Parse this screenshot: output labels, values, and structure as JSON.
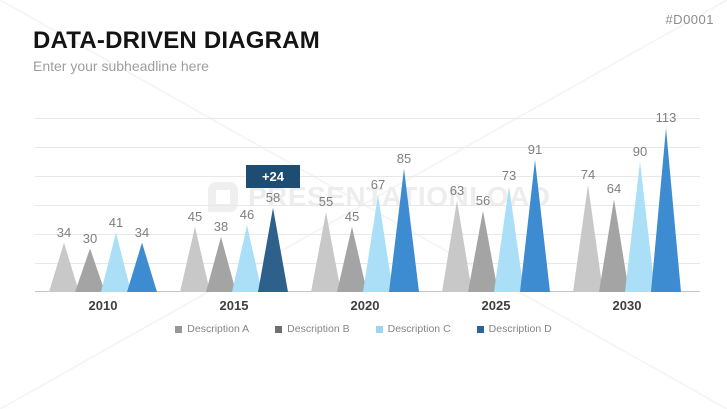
{
  "slide": {
    "code": "#D0001",
    "title": "DATA-DRIVEN DIAGRAM",
    "subheadline": "Enter your subheadline here",
    "watermark_text": "PRESENTATIONLOAD"
  },
  "chart_data": {
    "type": "bar",
    "variant": "triangle-peak-columns",
    "title": "",
    "xlabel": "",
    "ylabel": "",
    "categories": [
      "2010",
      "2015",
      "2020",
      "2025",
      "2030"
    ],
    "series": [
      {
        "name": "Description A",
        "color": "#c8c8c8",
        "legend_color": "#979797",
        "values": [
          34,
          45,
          55,
          63,
          74
        ]
      },
      {
        "name": "Description B",
        "color": "#a4a4a4",
        "legend_color": "#6f6f6f",
        "values": [
          30,
          38,
          45,
          56,
          64
        ]
      },
      {
        "name": "Description C",
        "color": "#abdff8",
        "legend_color": "#a0d4ef",
        "values": [
          41,
          46,
          67,
          73,
          90
        ]
      },
      {
        "name": "Description D",
        "color": "#3d8bd0",
        "legend_color": "#2a6498",
        "values": [
          34,
          58,
          85,
          91,
          113
        ]
      }
    ],
    "ylim": [
      0,
      120
    ],
    "gridline_step": 20,
    "grid": true,
    "legend_position": "bottom",
    "highlight": {
      "category": "2015",
      "series": "Description D",
      "badge_label": "+24",
      "badge_color": "#1d4d73",
      "triangle_color": "#2e608c"
    }
  }
}
